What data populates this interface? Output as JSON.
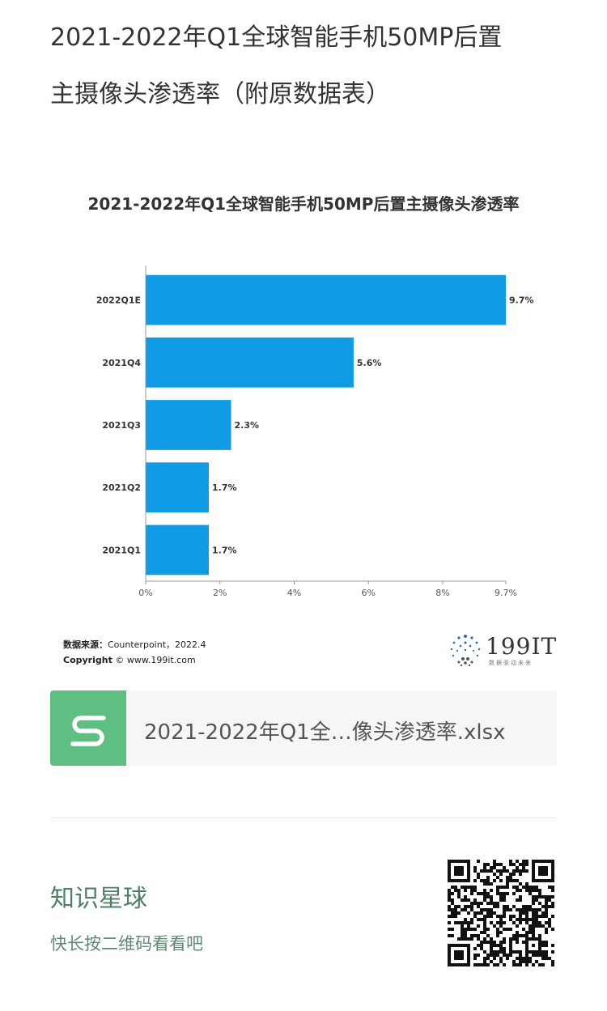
{
  "article": {
    "title_line1": "2021-2022年Q1全球智能手机50MP后置",
    "title_line2": "主摄像头渗透率（附原数据表）"
  },
  "chart_data": {
    "type": "bar",
    "orientation": "horizontal",
    "title": "2021-2022年Q1全球智能手机50MP后置主摄像头渗透率",
    "categories": [
      "2022Q1E",
      "2021Q4",
      "2021Q3",
      "2021Q2",
      "2021Q1"
    ],
    "values": [
      9.7,
      5.6,
      2.3,
      1.7,
      1.7
    ],
    "value_labels": [
      "9.7%",
      "5.6%",
      "2.3%",
      "1.7%",
      "1.7%"
    ],
    "x_ticks": [
      "0%",
      "2%",
      "4%",
      "6%",
      "8%",
      "9.7%"
    ],
    "x_tick_values": [
      0,
      2,
      4,
      6,
      8,
      9.7
    ],
    "xlim": [
      0,
      9.7
    ],
    "bar_color": "#0f9be6",
    "grid": false,
    "legend": "none"
  },
  "source": {
    "label": "数据来源：",
    "text": "Counterpoint，2022.4",
    "copyright_label": "Copyright",
    "copyright_text": "© www.199it.com"
  },
  "logo": {
    "name": "199IT",
    "tagline": "数据驱动未来"
  },
  "file": {
    "name": "2021-2022年Q1全…像头渗透率.xlsx",
    "icon": "spreadsheet-s-icon",
    "icon_color": "#5fbf82"
  },
  "planet": {
    "title": "知识星球",
    "subtitle": "快长按二维码看看吧",
    "qr_icon": "qr-code-icon"
  }
}
